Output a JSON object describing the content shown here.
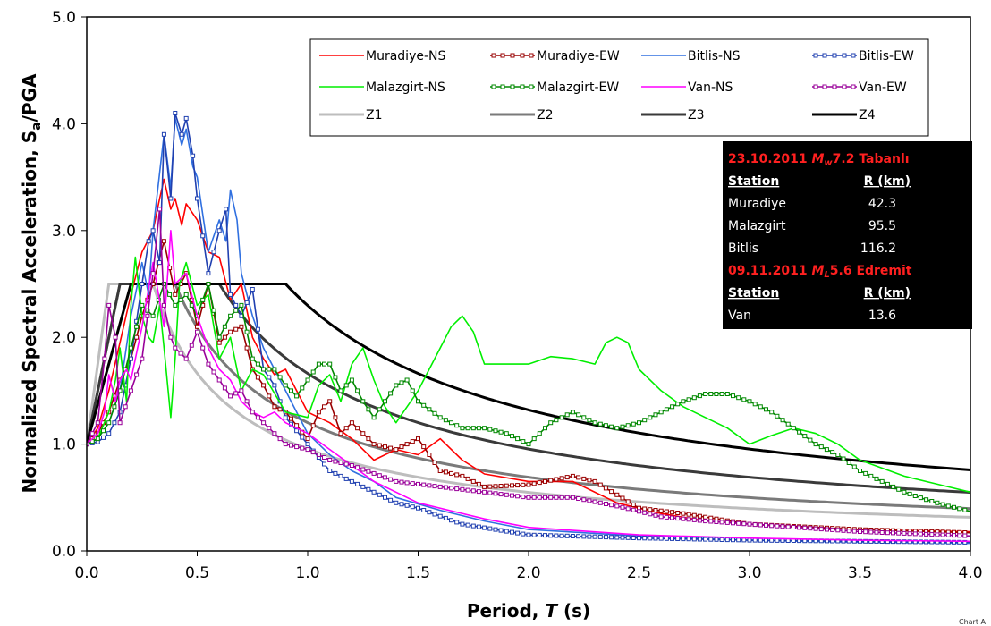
{
  "chart_data": {
    "type": "line",
    "xlabel_main": "Period, ",
    "xlabel_var": "T",
    "xlabel_unit": " (s)",
    "ylabel_main": "Normalized Spectral Acceleration, S",
    "ylabel_sub": "a",
    "ylabel_tail": "/PGA",
    "xlim": [
      0,
      4
    ],
    "ylim": [
      0,
      5
    ],
    "xticks": [
      "0.0",
      "0.5",
      "1.0",
      "1.5",
      "2.0",
      "2.5",
      "3.0",
      "3.5",
      "4.0"
    ],
    "yticks": [
      "0.0",
      "1.0",
      "2.0",
      "3.0",
      "4.0",
      "5.0"
    ],
    "grid": false,
    "legend_position": "top-right",
    "credit": "Chart A",
    "series": [
      {
        "name": "Muradiye-NS",
        "color": "#ff0000",
        "markers": false,
        "width": 1.6,
        "x": [
          0,
          0.05,
          0.1,
          0.15,
          0.2,
          0.25,
          0.3,
          0.33,
          0.35,
          0.38,
          0.4,
          0.43,
          0.45,
          0.5,
          0.55,
          0.6,
          0.65,
          0.7,
          0.75,
          0.8,
          0.85,
          0.9,
          1.0,
          1.1,
          1.2,
          1.3,
          1.4,
          1.5,
          1.6,
          1.7,
          1.8,
          2.0,
          2.2,
          2.4,
          2.6,
          2.8,
          3.0,
          3.5,
          4.0
        ],
        "y": [
          1.0,
          1.15,
          1.5,
          1.95,
          2.4,
          2.8,
          3.0,
          3.3,
          3.48,
          3.2,
          3.3,
          3.05,
          3.25,
          3.1,
          2.8,
          2.75,
          2.35,
          2.5,
          2.0,
          1.8,
          1.65,
          1.7,
          1.3,
          1.2,
          1.05,
          0.85,
          0.95,
          0.9,
          1.05,
          0.85,
          0.72,
          0.65,
          0.65,
          0.45,
          0.35,
          0.28,
          0.25,
          0.2,
          0.18
        ]
      },
      {
        "name": "Muradiye-EW",
        "color": "#990000",
        "markers": true,
        "width": 1.6,
        "x": [
          0,
          0.05,
          0.1,
          0.15,
          0.2,
          0.25,
          0.3,
          0.35,
          0.4,
          0.45,
          0.5,
          0.55,
          0.6,
          0.65,
          0.7,
          0.75,
          0.8,
          0.85,
          0.9,
          1.0,
          1.05,
          1.1,
          1.15,
          1.2,
          1.3,
          1.4,
          1.5,
          1.6,
          1.7,
          1.8,
          2.0,
          2.2,
          2.3,
          2.5,
          2.7,
          3.0,
          3.5,
          4.0
        ],
        "y": [
          1.0,
          1.1,
          1.3,
          1.6,
          1.8,
          2.2,
          2.5,
          2.9,
          2.4,
          2.6,
          2.1,
          2.5,
          1.95,
          2.05,
          2.1,
          1.7,
          1.55,
          1.35,
          1.3,
          1.05,
          1.3,
          1.4,
          1.1,
          1.2,
          1.0,
          0.95,
          1.05,
          0.75,
          0.7,
          0.6,
          0.62,
          0.7,
          0.65,
          0.4,
          0.35,
          0.25,
          0.2,
          0.17
        ]
      },
      {
        "name": "Bitlis-NS",
        "color": "#3070e0",
        "markers": false,
        "width": 1.6,
        "x": [
          0,
          0.05,
          0.1,
          0.15,
          0.2,
          0.25,
          0.28,
          0.3,
          0.35,
          0.38,
          0.4,
          0.43,
          0.45,
          0.48,
          0.5,
          0.55,
          0.6,
          0.63,
          0.65,
          0.68,
          0.7,
          0.75,
          0.8,
          0.85,
          0.9,
          1.0,
          1.1,
          1.2,
          1.3,
          1.4,
          1.6,
          1.8,
          2.0,
          2.5,
          3.0,
          3.5,
          4.0
        ],
        "y": [
          1.0,
          1.05,
          1.2,
          1.5,
          2.2,
          2.7,
          2.4,
          3.0,
          3.9,
          3.4,
          4.05,
          3.8,
          3.95,
          3.6,
          3.5,
          2.8,
          3.1,
          2.9,
          3.38,
          3.1,
          2.6,
          2.2,
          1.9,
          1.7,
          1.5,
          1.1,
          0.9,
          0.75,
          0.65,
          0.5,
          0.38,
          0.28,
          0.2,
          0.14,
          0.1,
          0.08,
          0.07
        ]
      },
      {
        "name": "Bitlis-EW",
        "color": "#2040b0",
        "markers": true,
        "width": 1.6,
        "x": [
          0,
          0.05,
          0.1,
          0.15,
          0.2,
          0.25,
          0.28,
          0.3,
          0.33,
          0.35,
          0.38,
          0.4,
          0.43,
          0.45,
          0.48,
          0.5,
          0.55,
          0.6,
          0.63,
          0.65,
          0.7,
          0.75,
          0.8,
          0.85,
          0.9,
          1.0,
          1.1,
          1.2,
          1.3,
          1.4,
          1.5,
          1.7,
          2.0,
          2.5,
          3.0,
          3.5,
          4.0
        ],
        "y": [
          1.0,
          1.02,
          1.1,
          1.3,
          1.8,
          2.5,
          2.9,
          3.0,
          2.7,
          3.9,
          3.3,
          4.1,
          3.9,
          4.05,
          3.7,
          3.3,
          2.6,
          3.0,
          3.2,
          2.4,
          2.2,
          2.45,
          1.7,
          1.55,
          1.25,
          1.0,
          0.75,
          0.65,
          0.55,
          0.45,
          0.4,
          0.25,
          0.15,
          0.12,
          0.1,
          0.09,
          0.08
        ]
      },
      {
        "name": "Malazgirt-NS",
        "color": "#00ee00",
        "markers": false,
        "width": 1.6,
        "x": [
          0,
          0.05,
          0.1,
          0.13,
          0.15,
          0.18,
          0.2,
          0.22,
          0.25,
          0.28,
          0.3,
          0.33,
          0.35,
          0.38,
          0.4,
          0.42,
          0.45,
          0.5,
          0.55,
          0.6,
          0.65,
          0.7,
          0.75,
          0.8,
          0.9,
          1.0,
          1.05,
          1.1,
          1.15,
          1.2,
          1.25,
          1.3,
          1.35,
          1.4,
          1.5,
          1.6,
          1.65,
          1.7,
          1.75,
          1.8,
          1.9,
          2.0,
          2.1,
          2.2,
          2.3,
          2.35,
          2.4,
          2.45,
          2.5,
          2.6,
          2.7,
          2.8,
          2.9,
          3.0,
          3.1,
          3.2,
          3.3,
          3.4,
          3.5,
          3.7,
          3.9,
          4.0
        ],
        "y": [
          1.0,
          1.05,
          1.3,
          1.6,
          1.9,
          1.4,
          2.3,
          2.75,
          2.2,
          2.0,
          1.95,
          2.3,
          1.9,
          1.25,
          1.8,
          2.5,
          2.7,
          2.3,
          2.4,
          1.8,
          2.0,
          1.5,
          1.7,
          1.65,
          1.3,
          1.25,
          1.55,
          1.65,
          1.4,
          1.75,
          1.9,
          1.6,
          1.35,
          1.2,
          1.5,
          1.9,
          2.1,
          2.2,
          2.05,
          1.75,
          1.75,
          1.75,
          1.82,
          1.8,
          1.75,
          1.95,
          2.0,
          1.95,
          1.7,
          1.5,
          1.35,
          1.25,
          1.15,
          1.0,
          1.08,
          1.15,
          1.1,
          1.0,
          0.85,
          0.7,
          0.6,
          0.55
        ]
      },
      {
        "name": "Malazgirt-EW",
        "color": "#008800",
        "markers": true,
        "width": 1.6,
        "x": [
          0,
          0.05,
          0.1,
          0.15,
          0.2,
          0.25,
          0.3,
          0.35,
          0.4,
          0.45,
          0.5,
          0.55,
          0.6,
          0.65,
          0.7,
          0.75,
          0.8,
          0.85,
          0.9,
          0.95,
          1.0,
          1.05,
          1.1,
          1.15,
          1.2,
          1.25,
          1.3,
          1.35,
          1.4,
          1.45,
          1.5,
          1.6,
          1.7,
          1.8,
          1.9,
          2.0,
          2.1,
          2.2,
          2.3,
          2.4,
          2.5,
          2.6,
          2.7,
          2.8,
          2.9,
          3.0,
          3.1,
          3.2,
          3.3,
          3.4,
          3.5,
          3.6,
          3.7,
          3.8,
          3.9,
          4.0
        ],
        "y": [
          1.0,
          1.05,
          1.2,
          1.5,
          1.9,
          2.3,
          2.2,
          2.5,
          2.3,
          2.4,
          2.2,
          2.5,
          2.0,
          2.2,
          2.3,
          1.8,
          1.7,
          1.7,
          1.55,
          1.45,
          1.6,
          1.75,
          1.75,
          1.5,
          1.6,
          1.4,
          1.25,
          1.4,
          1.55,
          1.6,
          1.4,
          1.25,
          1.15,
          1.15,
          1.1,
          1.0,
          1.2,
          1.3,
          1.2,
          1.15,
          1.2,
          1.3,
          1.4,
          1.47,
          1.47,
          1.4,
          1.3,
          1.15,
          1.0,
          0.9,
          0.75,
          0.65,
          0.55,
          0.48,
          0.42,
          0.37
        ]
      },
      {
        "name": "Van-NS",
        "color": "#ff00ff",
        "markers": false,
        "width": 1.6,
        "x": [
          0,
          0.05,
          0.08,
          0.1,
          0.13,
          0.15,
          0.18,
          0.2,
          0.25,
          0.3,
          0.35,
          0.38,
          0.4,
          0.45,
          0.5,
          0.55,
          0.6,
          0.65,
          0.7,
          0.75,
          0.8,
          0.85,
          0.9,
          1.0,
          1.1,
          1.2,
          1.3,
          1.5,
          1.8,
          2.0,
          2.5,
          3.0,
          3.5,
          4.0
        ],
        "y": [
          1.0,
          1.1,
          1.3,
          1.65,
          1.4,
          1.6,
          1.7,
          1.6,
          2.1,
          2.7,
          2.1,
          3.0,
          2.5,
          2.6,
          2.2,
          1.9,
          1.7,
          1.6,
          1.4,
          1.3,
          1.25,
          1.3,
          1.2,
          1.1,
          0.95,
          0.8,
          0.65,
          0.45,
          0.3,
          0.22,
          0.15,
          0.12,
          0.1,
          0.09
        ]
      },
      {
        "name": "Van-EW",
        "color": "#990099",
        "markers": true,
        "width": 1.6,
        "x": [
          0,
          0.05,
          0.08,
          0.1,
          0.13,
          0.15,
          0.2,
          0.25,
          0.3,
          0.33,
          0.35,
          0.38,
          0.4,
          0.45,
          0.5,
          0.55,
          0.6,
          0.65,
          0.7,
          0.75,
          0.8,
          0.85,
          0.9,
          1.0,
          1.1,
          1.2,
          1.4,
          1.6,
          1.8,
          2.0,
          2.2,
          2.4,
          2.6,
          2.8,
          3.0,
          3.5,
          4.0
        ],
        "y": [
          1.0,
          1.2,
          1.8,
          2.3,
          2.0,
          1.2,
          1.5,
          1.8,
          2.6,
          3.2,
          2.3,
          2.0,
          1.9,
          1.8,
          2.05,
          1.75,
          1.6,
          1.45,
          1.5,
          1.3,
          1.2,
          1.1,
          1.0,
          0.95,
          0.85,
          0.8,
          0.65,
          0.6,
          0.55,
          0.5,
          0.5,
          0.42,
          0.32,
          0.28,
          0.25,
          0.18,
          0.14
        ]
      },
      {
        "name": "Z1",
        "color": "#bdbdbd",
        "markers": false,
        "width": 3,
        "code_spectrum": {
          "ta": 0.0,
          "tb": 0.1,
          "tc": 0.3,
          "top": 2.5,
          "pga": 1.0
        }
      },
      {
        "name": "Z2",
        "color": "#7a7a7a",
        "markers": false,
        "width": 3,
        "code_spectrum": {
          "ta": 0.0,
          "tb": 0.15,
          "tc": 0.4,
          "top": 2.5,
          "pga": 1.0
        }
      },
      {
        "name": "Z3",
        "color": "#3a3a3a",
        "markers": false,
        "width": 3,
        "code_spectrum": {
          "ta": 0.0,
          "tb": 0.15,
          "tc": 0.6,
          "top": 2.5,
          "pga": 1.0
        }
      },
      {
        "name": "Z4",
        "color": "#000000",
        "markers": false,
        "width": 3,
        "code_spectrum": {
          "ta": 0.0,
          "tb": 0.2,
          "tc": 0.9,
          "top": 2.5,
          "pga": 1.0
        }
      }
    ]
  },
  "info_box": {
    "title1_date": "23.10.2011 ",
    "title1_m": "M",
    "title1_sub": "w",
    "title1_rest": "7.2 Tabanlı",
    "col_station": "Station",
    "col_r": "R (km)",
    "rows1": [
      {
        "station": "Muradiye",
        "r": "42.3"
      },
      {
        "station": "Malazgirt",
        "r": "95.5"
      },
      {
        "station": "Bitlis",
        "r": "116.2"
      }
    ],
    "title2_date": "09.11.2011 ",
    "title2_m": "M",
    "title2_sub": "L",
    "title2_rest": "5.6 Edremit",
    "rows2": [
      {
        "station": "Van",
        "r": "13.6"
      }
    ]
  }
}
